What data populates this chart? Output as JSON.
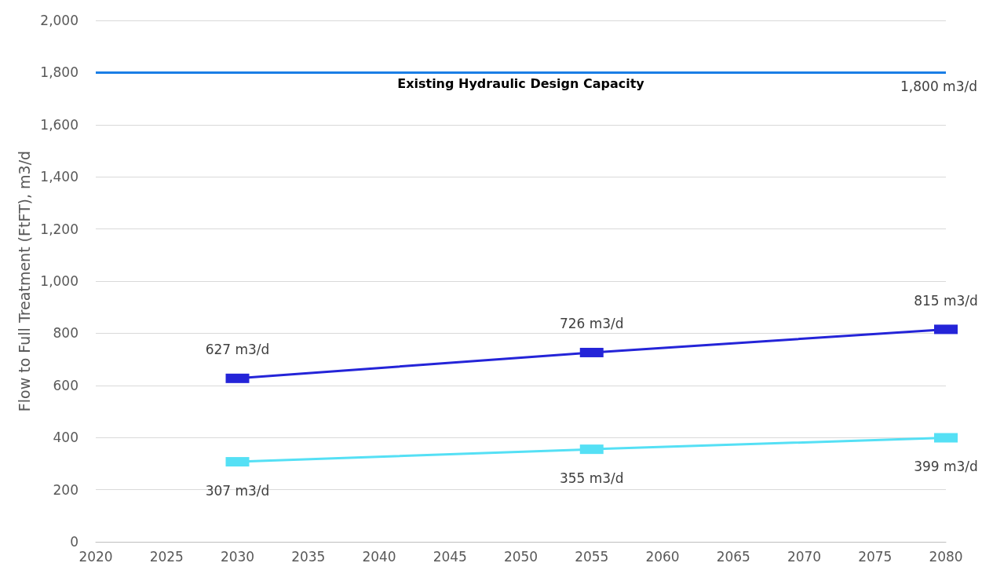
{
  "chart_data": {
    "type": "line",
    "ylabel": "Flow to Full Treatment (FtFT), m3/d",
    "x": [
      2030,
      2055,
      2080
    ],
    "series": [
      {
        "color": "#2424d8",
        "values": [
          627,
          726,
          815
        ],
        "value_labels": [
          "627 m3/d",
          "726 m3/d",
          "815 m3/d"
        ]
      },
      {
        "color": "#55e0f5",
        "values": [
          307,
          355,
          399
        ],
        "value_labels": [
          "307 m3/d",
          "355 m3/d",
          "399 m3/d"
        ]
      }
    ],
    "xlim": [
      2020,
      2080
    ],
    "xticks": [
      2020,
      2025,
      2030,
      2035,
      2040,
      2045,
      2050,
      2055,
      2060,
      2065,
      2070,
      2075,
      2080
    ],
    "ylim": [
      0,
      2000
    ],
    "yticks": [
      0,
      200,
      400,
      600,
      800,
      {
        "value": 1000,
        "label": "1,000"
      },
      {
        "value": 1200,
        "label": "1,200"
      },
      {
        "value": 1400,
        "label": "1,400"
      },
      {
        "value": 1600,
        "label": "1,600"
      },
      {
        "value": 1800,
        "label": "1,800"
      },
      {
        "value": 2000,
        "label": "2,000"
      }
    ],
    "ref_lines": [
      {
        "axis": "y",
        "value": 1800,
        "label": "Existing Hydraulic Design Capacity",
        "color": "#1a7ee6"
      }
    ],
    "annotations": [
      {
        "text": "1,800 m3/d",
        "x": 2080,
        "y": 1800
      }
    ],
    "grid": "y",
    "marker": "square",
    "line_style": "solid"
  }
}
